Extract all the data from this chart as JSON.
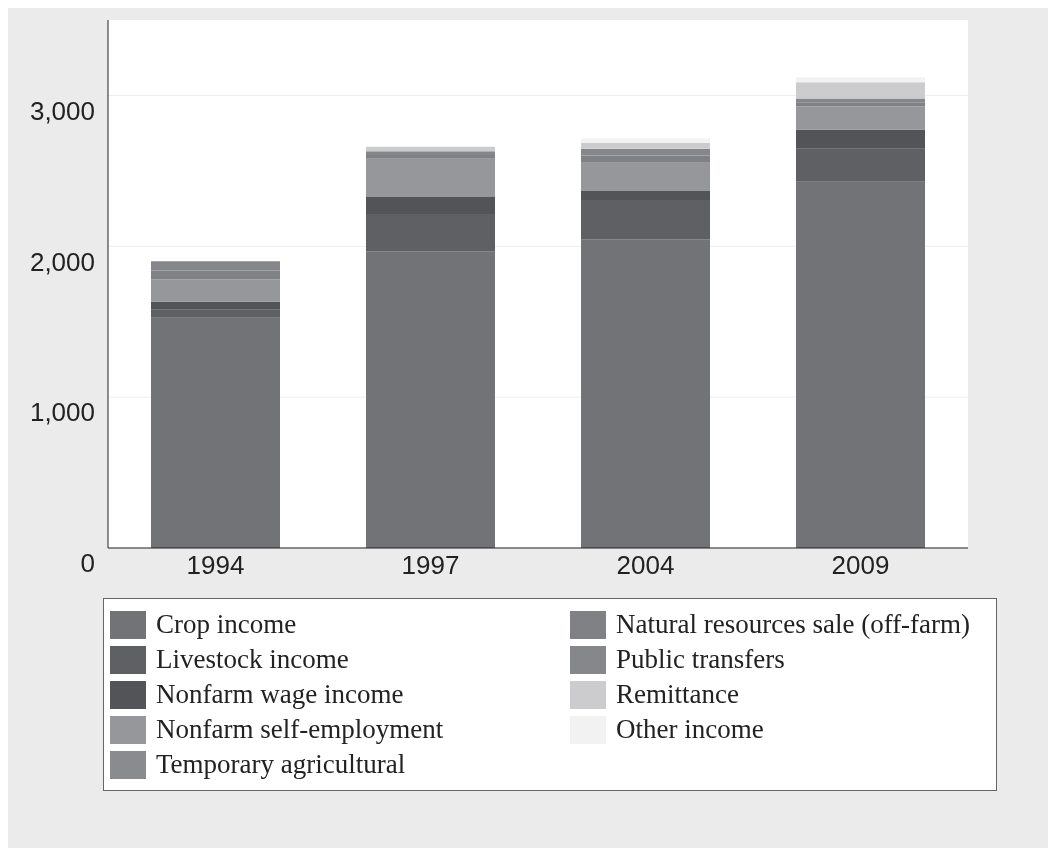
{
  "chart_data": {
    "type": "bar",
    "stacked": true,
    "categories": [
      "1994",
      "1997",
      "2004",
      "2009"
    ],
    "series": [
      {
        "name": "Crop income",
        "color": "#727377",
        "values": [
          1527,
          1967,
          2047,
          2427
        ]
      },
      {
        "name": "Livestock income",
        "color": "#5f6063",
        "values": [
          53,
          247,
          260,
          220
        ]
      },
      {
        "name": "Nonfarm wage income",
        "color": "#535457",
        "values": [
          53,
          113,
          60,
          127
        ]
      },
      {
        "name": "Nonfarm self-employment",
        "color": "#96979b",
        "values": [
          147,
          253,
          187,
          153
        ]
      },
      {
        "name": "Temporary agricultural",
        "color": "#8a8b8f",
        "values": [
          0,
          0,
          0,
          0
        ]
      },
      {
        "name": "Natural resources sale (off-farm)",
        "color": "#808185",
        "values": [
          60,
          25,
          47,
          27
        ]
      },
      {
        "name": "Public transfers",
        "color": "#86878b",
        "values": [
          60,
          25,
          46,
          26
        ]
      },
      {
        "name": "Remittance",
        "color": "#ccccce",
        "values": [
          0,
          30,
          40,
          107
        ]
      },
      {
        "name": "Other income",
        "color": "#f2f2f2",
        "values": [
          0,
          0,
          27,
          33
        ]
      }
    ],
    "ylim": [
      0,
      3500
    ],
    "yticks": [
      0,
      {
        "value": 1000,
        "label": "1,000"
      },
      {
        "value": 2000,
        "label": "2,000"
      },
      {
        "value": 3000,
        "label": "3,000"
      }
    ],
    "grid": "y",
    "legend": "bottom"
  }
}
